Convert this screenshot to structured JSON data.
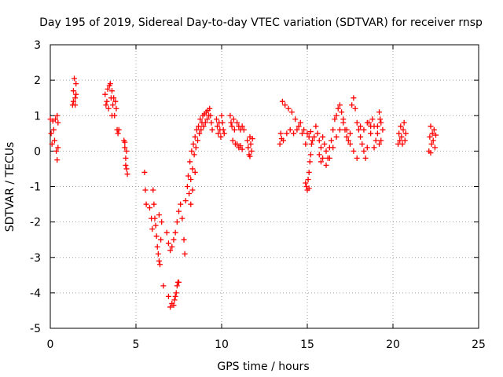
{
  "chart_data": {
    "type": "scatter",
    "title": "Day 195 of 2019, Sidereal Day-to-day VTEC variation (SDTVAR) for receiver rnsp",
    "xlabel": "GPS time / hours",
    "ylabel": "SDTVAR / TECUs",
    "xlim": [
      0,
      25
    ],
    "ylim": [
      -5,
      3
    ],
    "x_ticks": [
      0,
      5,
      10,
      15,
      20,
      25
    ],
    "x_tick_labels": [
      "0",
      "5",
      "10",
      "15",
      "20",
      "25"
    ],
    "y_ticks": [
      -5,
      -4,
      -3,
      -2,
      -1,
      0,
      1,
      2,
      3
    ],
    "y_tick_labels": [
      "-5",
      "-4",
      "-3",
      "-2",
      "-1",
      "0",
      "1",
      "2",
      "3"
    ],
    "grid": true,
    "marker": "plus",
    "series_color": "#ff0000",
    "series": [
      {
        "name": "SDTVAR",
        "points": [
          [
            0.0,
            0.9
          ],
          [
            0.05,
            0.5
          ],
          [
            0.1,
            0.2
          ],
          [
            0.15,
            0.85
          ],
          [
            0.2,
            0.6
          ],
          [
            0.25,
            0.3
          ],
          [
            0.3,
            0.9
          ],
          [
            0.35,
            0.0
          ],
          [
            0.4,
            1.0
          ],
          [
            0.45,
            0.1
          ],
          [
            0.4,
            -0.25
          ],
          [
            0.45,
            0.8
          ],
          [
            1.3,
            1.3
          ],
          [
            1.35,
            1.7
          ],
          [
            1.4,
            2.05
          ],
          [
            1.45,
            1.5
          ],
          [
            1.5,
            1.9
          ],
          [
            1.35,
            1.4
          ],
          [
            1.45,
            1.3
          ],
          [
            1.5,
            1.6
          ],
          [
            3.2,
            1.6
          ],
          [
            3.3,
            1.4
          ],
          [
            3.35,
            1.75
          ],
          [
            3.4,
            1.2
          ],
          [
            3.5,
            1.9
          ],
          [
            3.55,
            1.5
          ],
          [
            3.6,
            1.0
          ],
          [
            3.65,
            1.3
          ],
          [
            3.7,
            1.5
          ],
          [
            3.75,
            1.0
          ],
          [
            3.8,
            1.4
          ],
          [
            3.85,
            1.2
          ],
          [
            3.9,
            0.6
          ],
          [
            3.95,
            0.5
          ],
          [
            4.0,
            0.6
          ],
          [
            3.25,
            1.3
          ],
          [
            3.45,
            1.85
          ],
          [
            3.6,
            1.7
          ],
          [
            4.3,
            0.3
          ],
          [
            4.35,
            0.1
          ],
          [
            4.4,
            -0.2
          ],
          [
            4.45,
            -0.5
          ],
          [
            4.5,
            -0.65
          ],
          [
            4.35,
            0.25
          ],
          [
            4.4,
            -0.4
          ],
          [
            4.45,
            0.0
          ],
          [
            5.5,
            -0.6
          ],
          [
            5.55,
            -1.1
          ],
          [
            5.6,
            -1.5
          ],
          [
            5.8,
            -1.6
          ],
          [
            5.9,
            -1.9
          ],
          [
            5.95,
            -2.2
          ],
          [
            6.0,
            -1.1
          ],
          [
            6.05,
            -1.5
          ],
          [
            6.1,
            -1.9
          ],
          [
            6.15,
            -2.1
          ],
          [
            6.2,
            -2.4
          ],
          [
            6.25,
            -2.7
          ],
          [
            6.3,
            -2.9
          ],
          [
            6.35,
            -3.1
          ],
          [
            6.4,
            -3.2
          ],
          [
            6.45,
            -2.5
          ],
          [
            6.5,
            -2.0
          ],
          [
            6.35,
            -1.8
          ],
          [
            6.6,
            -3.8
          ],
          [
            6.8,
            -2.3
          ],
          [
            6.9,
            -2.6
          ],
          [
            7.0,
            -2.8
          ],
          [
            7.1,
            -2.7
          ],
          [
            7.2,
            -2.5
          ],
          [
            7.3,
            -2.3
          ],
          [
            7.4,
            -2.0
          ],
          [
            7.5,
            -1.7
          ],
          [
            7.6,
            -1.5
          ],
          [
            7.7,
            -1.9
          ],
          [
            7.8,
            -2.5
          ],
          [
            7.85,
            -2.9
          ],
          [
            6.9,
            -4.1
          ],
          [
            7.0,
            -4.4
          ],
          [
            7.1,
            -4.3
          ],
          [
            7.2,
            -4.35
          ],
          [
            7.25,
            -4.2
          ],
          [
            7.3,
            -4.1
          ],
          [
            7.35,
            -4.0
          ],
          [
            7.4,
            -3.8
          ],
          [
            7.45,
            -3.7
          ],
          [
            7.5,
            -3.7
          ],
          [
            7.9,
            -1.4
          ],
          [
            8.0,
            -1.0
          ],
          [
            8.05,
            -0.7
          ],
          [
            8.1,
            -1.2
          ],
          [
            8.15,
            -0.3
          ],
          [
            8.2,
            -0.8
          ],
          [
            8.25,
            0.0
          ],
          [
            8.3,
            -0.5
          ],
          [
            8.35,
            0.2
          ],
          [
            8.4,
            -0.1
          ],
          [
            8.45,
            0.4
          ],
          [
            8.5,
            0.1
          ],
          [
            8.55,
            0.6
          ],
          [
            8.6,
            0.3
          ],
          [
            8.65,
            0.7
          ],
          [
            8.7,
            0.5
          ],
          [
            8.75,
            0.9
          ],
          [
            8.8,
            0.6
          ],
          [
            8.85,
            0.8
          ],
          [
            8.9,
            1.0
          ],
          [
            8.95,
            0.7
          ],
          [
            9.0,
            1.05
          ],
          [
            9.05,
            0.8
          ],
          [
            9.1,
            1.1
          ],
          [
            9.15,
            0.9
          ],
          [
            9.2,
            1.15
          ],
          [
            9.25,
            1.0
          ],
          [
            9.3,
            1.2
          ],
          [
            9.35,
            1.0
          ],
          [
            9.4,
            0.8
          ],
          [
            9.45,
            0.6
          ],
          [
            8.2,
            -1.5
          ],
          [
            8.3,
            -1.1
          ],
          [
            8.45,
            -0.6
          ],
          [
            9.7,
            0.9
          ],
          [
            9.75,
            0.7
          ],
          [
            9.8,
            0.5
          ],
          [
            9.85,
            0.8
          ],
          [
            9.9,
            0.6
          ],
          [
            9.95,
            0.4
          ],
          [
            10.0,
            1.0
          ],
          [
            10.05,
            0.8
          ],
          [
            10.1,
            0.6
          ],
          [
            10.15,
            0.5
          ],
          [
            10.5,
            1.0
          ],
          [
            10.55,
            0.8
          ],
          [
            10.6,
            0.7
          ],
          [
            10.65,
            0.3
          ],
          [
            10.7,
            0.9
          ],
          [
            10.75,
            0.6
          ],
          [
            10.8,
            0.2
          ],
          [
            10.9,
            0.8
          ],
          [
            11.0,
            0.7
          ],
          [
            11.1,
            0.6
          ],
          [
            11.2,
            0.7
          ],
          [
            11.3,
            0.6
          ],
          [
            10.9,
            0.2
          ],
          [
            11.0,
            0.1
          ],
          [
            11.1,
            0.15
          ],
          [
            11.2,
            0.05
          ],
          [
            11.5,
            0.3
          ],
          [
            11.55,
            0.1
          ],
          [
            11.6,
            -0.1
          ],
          [
            11.65,
            0.4
          ],
          [
            11.7,
            0.2
          ],
          [
            11.75,
            0.0
          ],
          [
            11.8,
            0.35
          ],
          [
            11.65,
            -0.15
          ],
          [
            13.4,
            0.2
          ],
          [
            13.45,
            0.5
          ],
          [
            13.5,
            0.35
          ],
          [
            13.55,
            1.4
          ],
          [
            13.6,
            0.3
          ],
          [
            13.7,
            1.3
          ],
          [
            13.8,
            0.5
          ],
          [
            13.9,
            1.2
          ],
          [
            14.0,
            0.6
          ],
          [
            14.1,
            1.1
          ],
          [
            14.2,
            0.5
          ],
          [
            14.3,
            0.9
          ],
          [
            14.4,
            0.6
          ],
          [
            14.5,
            0.7
          ],
          [
            14.6,
            0.8
          ],
          [
            14.7,
            0.5
          ],
          [
            14.8,
            0.6
          ],
          [
            14.9,
            0.2
          ],
          [
            15.0,
            0.5
          ],
          [
            15.1,
            0.4
          ],
          [
            15.2,
            0.55
          ],
          [
            15.3,
            0.3
          ],
          [
            14.9,
            -0.9
          ],
          [
            14.95,
            -1.0
          ],
          [
            15.0,
            -1.1
          ],
          [
            15.05,
            -0.8
          ],
          [
            15.1,
            -0.6
          ],
          [
            15.15,
            -0.3
          ],
          [
            15.2,
            -0.1
          ],
          [
            15.25,
            0.2
          ],
          [
            15.1,
            -1.05
          ],
          [
            15.4,
            0.4
          ],
          [
            15.5,
            0.7
          ],
          [
            15.6,
            0.5
          ],
          [
            15.7,
            0.3
          ],
          [
            15.8,
            0.1
          ],
          [
            15.9,
            0.4
          ],
          [
            16.0,
            0.2
          ],
          [
            16.1,
            0.0
          ],
          [
            16.2,
            -0.2
          ],
          [
            16.3,
            0.1
          ],
          [
            16.4,
            0.3
          ],
          [
            16.5,
            0.6
          ],
          [
            16.6,
            0.9
          ],
          [
            16.7,
            1.0
          ],
          [
            16.8,
            1.2
          ],
          [
            16.9,
            1.3
          ],
          [
            17.0,
            1.1
          ],
          [
            17.1,
            0.8
          ],
          [
            17.2,
            0.6
          ],
          [
            17.3,
            0.4
          ],
          [
            17.4,
            0.3
          ],
          [
            17.5,
            0.5
          ],
          [
            17.6,
            1.3
          ],
          [
            17.7,
            1.5
          ],
          [
            17.8,
            1.2
          ],
          [
            17.9,
            0.8
          ],
          [
            18.0,
            0.6
          ],
          [
            18.1,
            0.4
          ],
          [
            18.2,
            0.2
          ],
          [
            18.3,
            0.0
          ],
          [
            18.4,
            -0.2
          ],
          [
            18.5,
            0.1
          ],
          [
            18.6,
            0.8
          ],
          [
            18.7,
            0.7
          ],
          [
            18.8,
            0.9
          ],
          [
            18.9,
            0.7
          ],
          [
            19.0,
            0.3
          ],
          [
            19.1,
            0.5
          ],
          [
            19.2,
            0.2
          ],
          [
            19.3,
            0.8
          ],
          [
            19.4,
            0.6
          ],
          [
            19.2,
            1.1
          ],
          [
            19.25,
            0.9
          ],
          [
            15.7,
            -0.1
          ],
          [
            15.8,
            -0.3
          ],
          [
            15.9,
            -0.2
          ],
          [
            16.1,
            -0.4
          ],
          [
            16.3,
            -0.2
          ],
          [
            16.5,
            0.1
          ],
          [
            16.7,
            0.4
          ],
          [
            16.9,
            0.6
          ],
          [
            17.1,
            0.9
          ],
          [
            17.3,
            0.6
          ],
          [
            17.5,
            0.2
          ],
          [
            17.7,
            0.0
          ],
          [
            17.9,
            -0.2
          ],
          [
            18.1,
            0.7
          ],
          [
            18.3,
            0.6
          ],
          [
            18.5,
            0.8
          ],
          [
            18.7,
            0.5
          ],
          [
            18.9,
            0.1
          ],
          [
            19.1,
            0.7
          ],
          [
            19.3,
            0.3
          ],
          [
            20.3,
            0.2
          ],
          [
            20.35,
            0.5
          ],
          [
            20.4,
            0.3
          ],
          [
            20.45,
            0.7
          ],
          [
            20.5,
            0.4
          ],
          [
            20.55,
            0.2
          ],
          [
            20.6,
            0.6
          ],
          [
            20.65,
            0.8
          ],
          [
            20.7,
            0.3
          ],
          [
            20.75,
            0.5
          ],
          [
            22.1,
            0.0
          ],
          [
            22.15,
            0.4
          ],
          [
            22.2,
            0.7
          ],
          [
            22.25,
            0.2
          ],
          [
            22.3,
            0.5
          ],
          [
            22.35,
            0.3
          ],
          [
            22.4,
            0.6
          ],
          [
            22.45,
            0.1
          ],
          [
            22.5,
            0.45
          ],
          [
            22.2,
            -0.05
          ]
        ]
      }
    ]
  }
}
